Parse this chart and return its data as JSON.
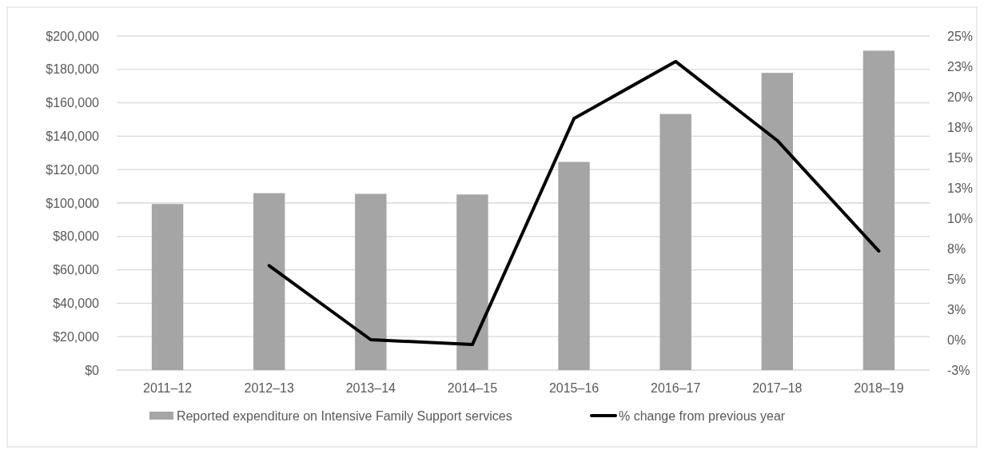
{
  "chart_data": {
    "type": "bar",
    "categories": [
      "2011–12",
      "2012–13",
      "2013–14",
      "2014–15",
      "2015–16",
      "2016–17",
      "2017–18",
      "2018–19"
    ],
    "series": [
      {
        "name": "Reported expenditure on Intensive Family Support services",
        "color": "#a5a5a5",
        "values": [
          99400,
          105900,
          105500,
          105100,
          124600,
          153300,
          177900,
          191200
        ]
      },
      {
        "name": "% change from previous year",
        "type": "line",
        "axis": "y2",
        "color": "#000000",
        "values": [
          null,
          6.1,
          0.0,
          -0.4,
          18.2,
          22.9,
          16.4,
          7.3
        ]
      }
    ],
    "ylim": [
      0,
      200000
    ],
    "yticks": [
      {
        "value": 0,
        "label": "$0"
      },
      {
        "value": 20000,
        "label": "$20,000"
      },
      {
        "value": 40000,
        "label": "$40,000"
      },
      {
        "value": 60000,
        "label": "$60,000"
      },
      {
        "value": 80000,
        "label": "$80,000"
      },
      {
        "value": 100000,
        "label": "$100,000"
      },
      {
        "value": 120000,
        "label": "$120,000"
      },
      {
        "value": 140000,
        "label": "$140,000"
      },
      {
        "value": 160000,
        "label": "$160,000"
      },
      {
        "value": 180000,
        "label": "$180,000"
      },
      {
        "value": 200000,
        "label": "$200,000"
      }
    ],
    "y2lim": [
      -2.5,
      25
    ],
    "y2ticks": [
      {
        "value": -2.5,
        "label": "-3%"
      },
      {
        "value": 0,
        "label": "0%"
      },
      {
        "value": 2.5,
        "label": "3%"
      },
      {
        "value": 5,
        "label": "5%"
      },
      {
        "value": 7.5,
        "label": "8%"
      },
      {
        "value": 10,
        "label": "10%"
      },
      {
        "value": 12.5,
        "label": "13%"
      },
      {
        "value": 15,
        "label": "15%"
      },
      {
        "value": 17.5,
        "label": "18%"
      },
      {
        "value": 20,
        "label": "20%"
      },
      {
        "value": 22.5,
        "label": "23%"
      },
      {
        "value": 25,
        "label": "25%"
      }
    ],
    "grid": "y",
    "legend": "bottom"
  }
}
